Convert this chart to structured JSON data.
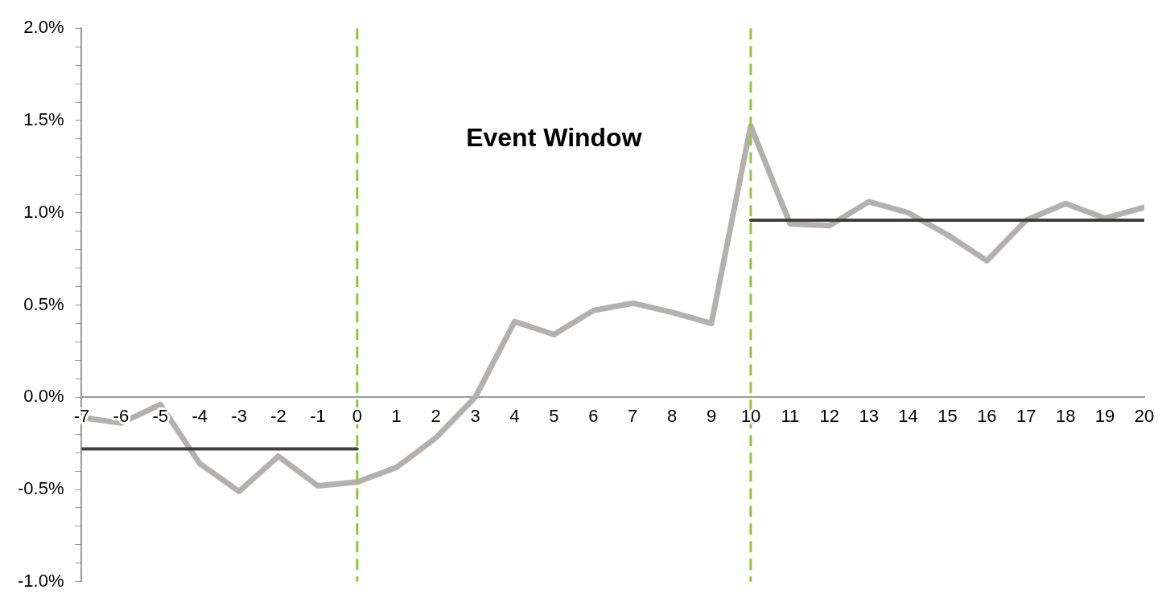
{
  "chart_data": {
    "type": "line",
    "x": [
      -7,
      -6,
      -5,
      -4,
      -3,
      -2,
      -1,
      0,
      1,
      2,
      3,
      4,
      5,
      6,
      7,
      8,
      9,
      10,
      11,
      12,
      13,
      14,
      15,
      16,
      17,
      18,
      19,
      20
    ],
    "series": [
      {
        "color": "#b5b0ad",
        "values": [
          -0.11,
          -0.14,
          -0.04,
          -0.36,
          -0.51,
          -0.32,
          -0.48,
          -0.46,
          -0.38,
          -0.22,
          0.0,
          0.41,
          0.34,
          0.47,
          0.51,
          0.46,
          0.4,
          1.47,
          0.94,
          0.93,
          1.06,
          1.0,
          0.88,
          0.74,
          0.96,
          1.05,
          0.97,
          1.03
        ]
      },
      {
        "type": "line",
        "color": "#404040",
        "x": [
          -7,
          0
        ],
        "values": [
          -0.28,
          -0.28
        ]
      },
      {
        "type": "line",
        "color": "#404040",
        "x": [
          10,
          20
        ],
        "values": [
          0.96,
          0.96
        ]
      }
    ],
    "xlim": [
      -7,
      20
    ],
    "xticks": [
      -7,
      -6,
      -5,
      -4,
      -3,
      -2,
      -1,
      0,
      1,
      2,
      3,
      4,
      5,
      6,
      7,
      8,
      9,
      10,
      11,
      12,
      13,
      14,
      15,
      16,
      17,
      18,
      19,
      20
    ],
    "ylim": [
      -1,
      2
    ],
    "yticks": [
      {
        "value": -1,
        "label": "-1.0%"
      },
      {
        "value": -0.9,
        "label": null
      },
      {
        "value": -0.8,
        "label": null
      },
      {
        "value": -0.7,
        "label": null
      },
      {
        "value": -0.6,
        "label": null
      },
      {
        "value": -0.5,
        "label": "-0.5%"
      },
      {
        "value": -0.4,
        "label": null
      },
      {
        "value": -0.3,
        "label": null
      },
      {
        "value": -0.2,
        "label": null
      },
      {
        "value": -0.1,
        "label": null
      },
      {
        "value": 0,
        "label": "0.0%"
      },
      {
        "value": 0.1,
        "label": null
      },
      {
        "value": 0.2,
        "label": null
      },
      {
        "value": 0.3,
        "label": null
      },
      {
        "value": 0.4,
        "label": null
      },
      {
        "value": 0.5,
        "label": "0.5%"
      },
      {
        "value": 0.6,
        "label": null
      },
      {
        "value": 0.7,
        "label": null
      },
      {
        "value": 0.8,
        "label": null
      },
      {
        "value": 0.9,
        "label": null
      },
      {
        "value": 1,
        "label": "1.0%"
      },
      {
        "value": 1.1,
        "label": null
      },
      {
        "value": 1.2,
        "label": null
      },
      {
        "value": 1.3,
        "label": null
      },
      {
        "value": 1.4,
        "label": null
      },
      {
        "value": 1.5,
        "label": "1.5%"
      },
      {
        "value": 1.6,
        "label": null
      },
      {
        "value": 1.7,
        "label": null
      },
      {
        "value": 1.8,
        "label": null
      },
      {
        "value": 1.9,
        "label": null
      },
      {
        "value": 2,
        "label": "2.0%"
      }
    ],
    "ref_lines": [
      {
        "axis": "x",
        "value": 0,
        "color": "#8dc63f",
        "line_style": "dashed"
      },
      {
        "axis": "x",
        "value": 10,
        "color": "#8dc63f",
        "line_style": "dashed"
      }
    ],
    "annotations": [
      "Event Window"
    ]
  }
}
